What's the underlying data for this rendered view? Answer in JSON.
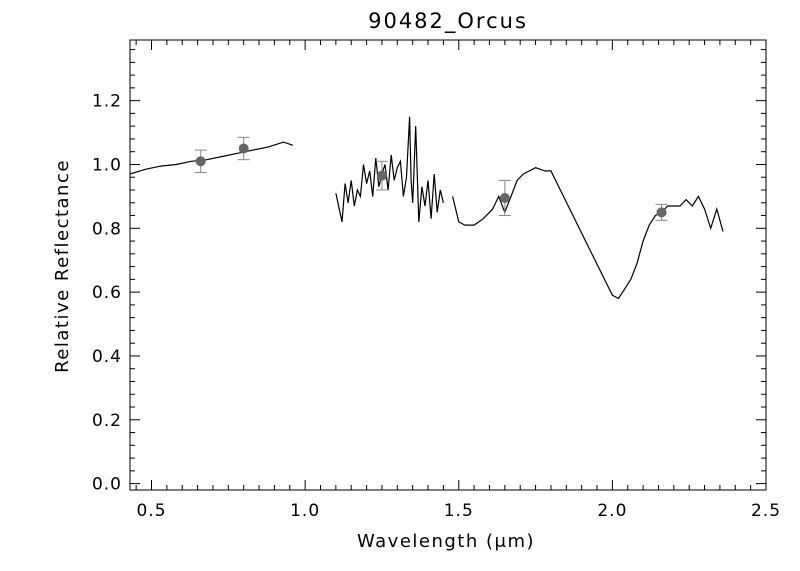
{
  "chart_data": {
    "type": "line",
    "title": "90482_Orcus",
    "xlabel": "Wavelength (μm)",
    "ylabel": "Relative Reflectance",
    "xlim": [
      0.43,
      2.5
    ],
    "ylim": [
      -0.02,
      1.39
    ],
    "x_ticks": [
      0.5,
      1.0,
      1.5,
      2.0,
      2.5
    ],
    "x_tick_labels": [
      "0.5",
      "1.0",
      "1.5",
      "2.0",
      "2.5"
    ],
    "y_ticks": [
      0.0,
      0.2,
      0.4,
      0.6,
      0.8,
      1.0,
      1.2
    ],
    "y_tick_labels": [
      "0.0",
      "0.2",
      "0.4",
      "0.6",
      "0.8",
      "1.0",
      "1.2"
    ],
    "grid": false,
    "line_color": "#000000",
    "point_color": "#666666",
    "errorbar_color": "#888888",
    "series": [
      {
        "segment": "visible",
        "x": [
          0.43,
          0.48,
          0.53,
          0.58,
          0.63,
          0.68,
          0.73,
          0.78,
          0.83,
          0.88,
          0.93,
          0.96
        ],
        "y": [
          0.97,
          0.985,
          0.995,
          1.0,
          1.01,
          1.015,
          1.025,
          1.035,
          1.045,
          1.055,
          1.07,
          1.06
        ]
      },
      {
        "segment": "J-band",
        "x": [
          1.1,
          1.12,
          1.13,
          1.14,
          1.15,
          1.16,
          1.17,
          1.18,
          1.19,
          1.2,
          1.21,
          1.22,
          1.23,
          1.24,
          1.25,
          1.26,
          1.27,
          1.28,
          1.29,
          1.3,
          1.31,
          1.32,
          1.33,
          1.34,
          1.345,
          1.35,
          1.36,
          1.37,
          1.38,
          1.39,
          1.4,
          1.41,
          1.42,
          1.43,
          1.44,
          1.45
        ],
        "y": [
          0.91,
          0.82,
          0.94,
          0.88,
          0.95,
          0.87,
          0.92,
          0.9,
          1.0,
          0.94,
          0.98,
          0.9,
          1.02,
          0.93,
          0.97,
          1.0,
          0.92,
          1.03,
          0.95,
          0.99,
          1.01,
          0.9,
          0.96,
          1.15,
          0.95,
          0.88,
          1.12,
          0.82,
          0.93,
          0.87,
          0.95,
          0.83,
          0.97,
          0.85,
          0.92,
          0.88
        ]
      },
      {
        "segment": "H-K-band",
        "x": [
          1.48,
          1.5,
          1.52,
          1.55,
          1.58,
          1.61,
          1.63,
          1.65,
          1.67,
          1.69,
          1.71,
          1.73,
          1.75,
          1.78,
          1.8,
          2.0,
          2.02,
          2.04,
          2.06,
          2.08,
          2.1,
          2.12,
          2.14,
          2.16,
          2.18,
          2.2,
          2.22,
          2.24,
          2.26,
          2.28,
          2.3,
          2.32,
          2.34,
          2.36
        ],
        "y": [
          0.9,
          0.82,
          0.81,
          0.81,
          0.83,
          0.86,
          0.9,
          0.85,
          0.9,
          0.95,
          0.97,
          0.98,
          0.99,
          0.98,
          0.98,
          0.59,
          0.58,
          0.61,
          0.64,
          0.69,
          0.76,
          0.81,
          0.84,
          0.85,
          0.87,
          0.87,
          0.87,
          0.89,
          0.87,
          0.9,
          0.86,
          0.8,
          0.86,
          0.79
        ]
      }
    ],
    "photometry": [
      {
        "x": 0.66,
        "y": 1.01,
        "err": 0.035
      },
      {
        "x": 0.8,
        "y": 1.05,
        "err": 0.035
      },
      {
        "x": 1.25,
        "y": 0.965,
        "err": 0.045
      },
      {
        "x": 1.65,
        "y": 0.895,
        "err": 0.055
      },
      {
        "x": 2.16,
        "y": 0.85,
        "err": 0.025
      }
    ]
  }
}
